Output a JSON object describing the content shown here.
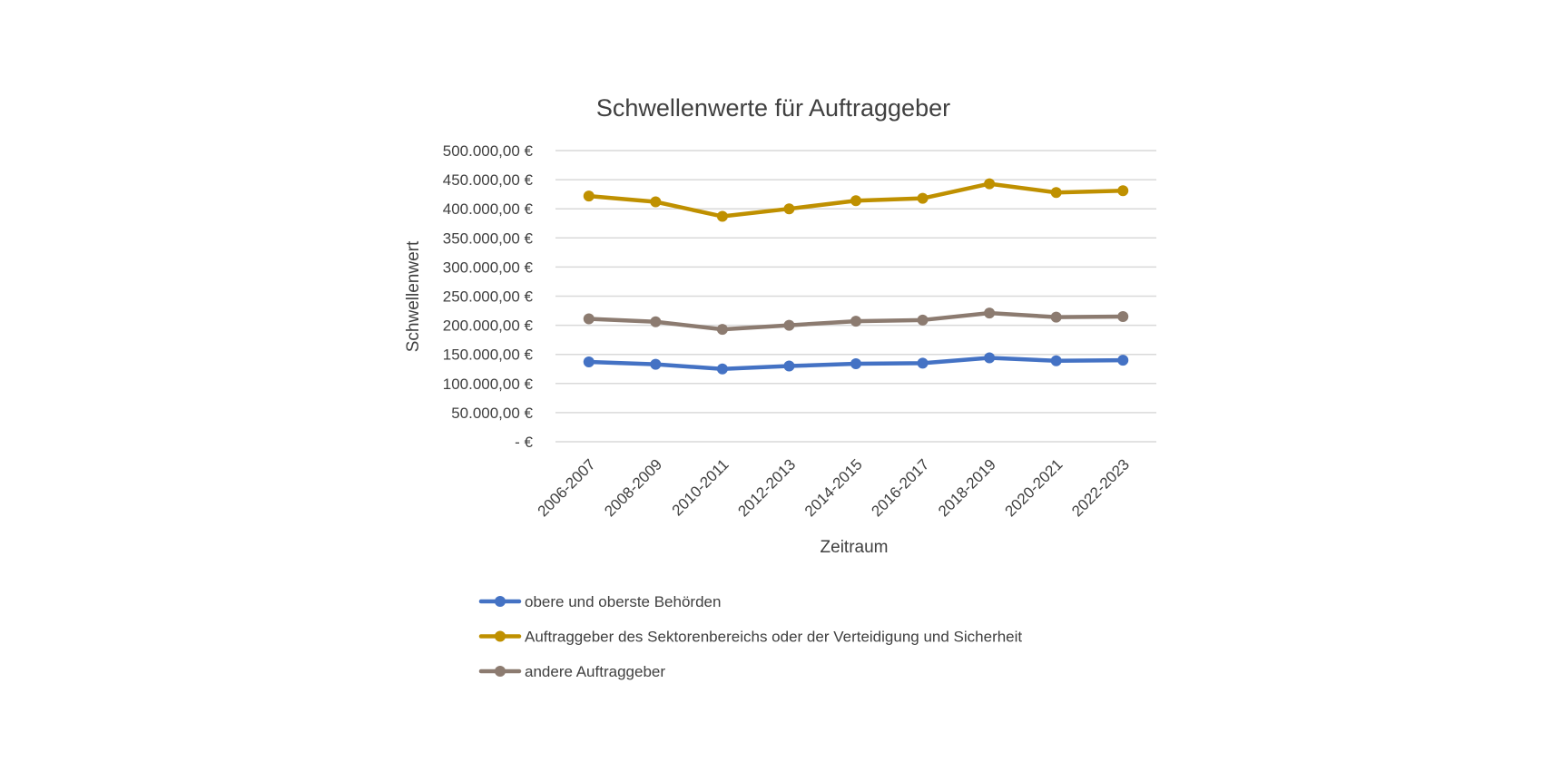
{
  "chart_data": {
    "type": "line",
    "title": "Schwellenwerte für Auftraggeber",
    "xlabel": "Zeitraum",
    "ylabel": "Schwellenwert",
    "categories": [
      "2006-2007",
      "2008-2009",
      "2010-2011",
      "2012-2013",
      "2014-2015",
      "2016-2017",
      "2018-2019",
      "2020-2021",
      "2022-2023"
    ],
    "ylim": [
      0,
      500000
    ],
    "yticks": [
      0,
      50000,
      100000,
      150000,
      200000,
      250000,
      300000,
      350000,
      400000,
      450000,
      500000
    ],
    "ytick_labels": [
      "-   €",
      "50.000,00 €",
      "100.000,00 €",
      "150.000,00 €",
      "200.000,00 €",
      "250.000,00 €",
      "300.000,00 €",
      "350.000,00 €",
      "400.000,00 €",
      "450.000,00 €",
      "500.000,00 €"
    ],
    "grid": true,
    "legend_position": "bottom",
    "series": [
      {
        "name": "obere und oberste Behörden",
        "color": "#4472c4",
        "values": [
          137000,
          133000,
          125000,
          130000,
          134000,
          135000,
          144000,
          139000,
          140000
        ]
      },
      {
        "name": "Auftraggeber des Sektorenbereichs oder der Verteidigung und Sicherheit",
        "color": "#bf9000",
        "values": [
          422000,
          412000,
          387000,
          400000,
          414000,
          418000,
          443000,
          428000,
          431000
        ]
      },
      {
        "name": "andere Auftraggeber",
        "color": "#8c7b70",
        "values": [
          211000,
          206000,
          193000,
          200000,
          207000,
          209000,
          221000,
          214000,
          215000
        ]
      }
    ]
  }
}
